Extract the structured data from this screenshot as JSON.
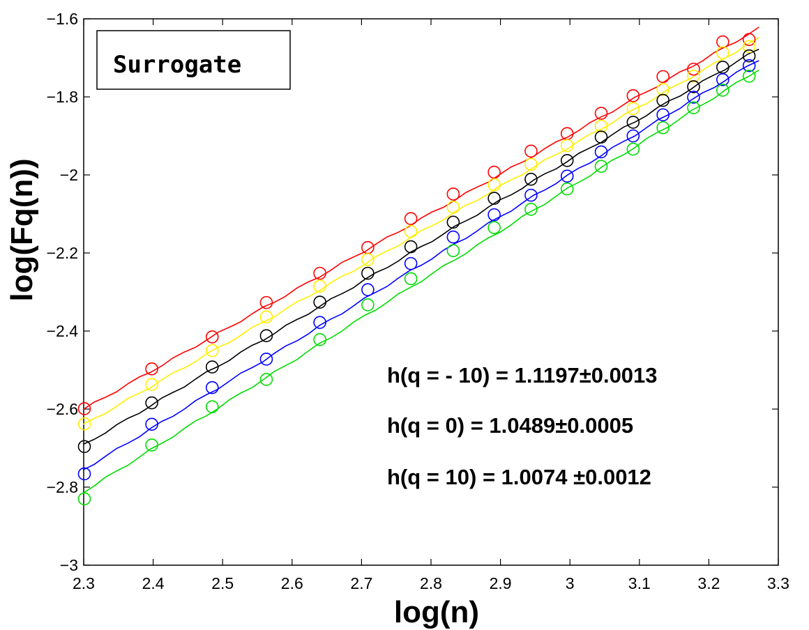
{
  "chart_data": {
    "type": "scatter",
    "title": "",
    "xlabel": "log(n)",
    "ylabel": "log(Fq(n))",
    "xlim": [
      2.3,
      3.3
    ],
    "ylim": [
      -3,
      -1.6
    ],
    "xticks": [
      "2.3",
      "2.4",
      "2.5",
      "2.6",
      "2.7",
      "2.8",
      "2.9",
      "3",
      "3.1",
      "3.2",
      "3.3"
    ],
    "yticks": [
      "−1.6",
      "−1.8",
      "−2",
      "−2.2",
      "−2.4",
      "−2.6",
      "−2.8",
      "−3"
    ],
    "grid": false,
    "label_box": "Surrogate",
    "annotations": [
      "h(q = - 10) = 1.1197±0.0013",
      "h(q = 0) = 1.0489±0.0005",
      "h(q = 10) = 1.0074 ±0.0012"
    ],
    "x": [
      2.301,
      2.398,
      2.485,
      2.563,
      2.64,
      2.709,
      2.771,
      2.832,
      2.891,
      2.944,
      2.996,
      3.045,
      3.091,
      3.134,
      3.178,
      3.22,
      3.258
    ],
    "series": [
      {
        "color": "#ff0000",
        "values": [
          -2.599,
          -2.497,
          -2.415,
          -2.327,
          -2.252,
          -2.186,
          -2.112,
          -2.049,
          -1.993,
          -1.939,
          -1.894,
          -1.842,
          -1.797,
          -1.748,
          -1.729,
          -1.659,
          -1.653
        ]
      },
      {
        "color": "#ffee00",
        "values": [
          -2.638,
          -2.537,
          -2.45,
          -2.364,
          -2.285,
          -2.217,
          -2.145,
          -2.083,
          -2.025,
          -1.973,
          -1.925,
          -1.875,
          -1.83,
          -1.781,
          -1.747,
          -1.687,
          -1.671
        ]
      },
      {
        "color": "#000000",
        "values": [
          -2.696,
          -2.584,
          -2.492,
          -2.412,
          -2.326,
          -2.252,
          -2.184,
          -2.121,
          -2.06,
          -2.011,
          -1.963,
          -1.903,
          -1.865,
          -1.809,
          -1.774,
          -1.724,
          -1.695
        ]
      },
      {
        "color": "#0000ff",
        "values": [
          -2.766,
          -2.639,
          -2.545,
          -2.472,
          -2.378,
          -2.294,
          -2.227,
          -2.159,
          -2.102,
          -2.052,
          -2.003,
          -1.941,
          -1.9,
          -1.846,
          -1.801,
          -1.756,
          -1.72
        ]
      },
      {
        "color": "#00dd00",
        "values": [
          -2.83,
          -2.692,
          -2.594,
          -2.524,
          -2.422,
          -2.333,
          -2.266,
          -2.194,
          -2.135,
          -2.088,
          -2.036,
          -1.978,
          -1.934,
          -1.879,
          -1.828,
          -1.783,
          -1.747
        ]
      }
    ]
  }
}
